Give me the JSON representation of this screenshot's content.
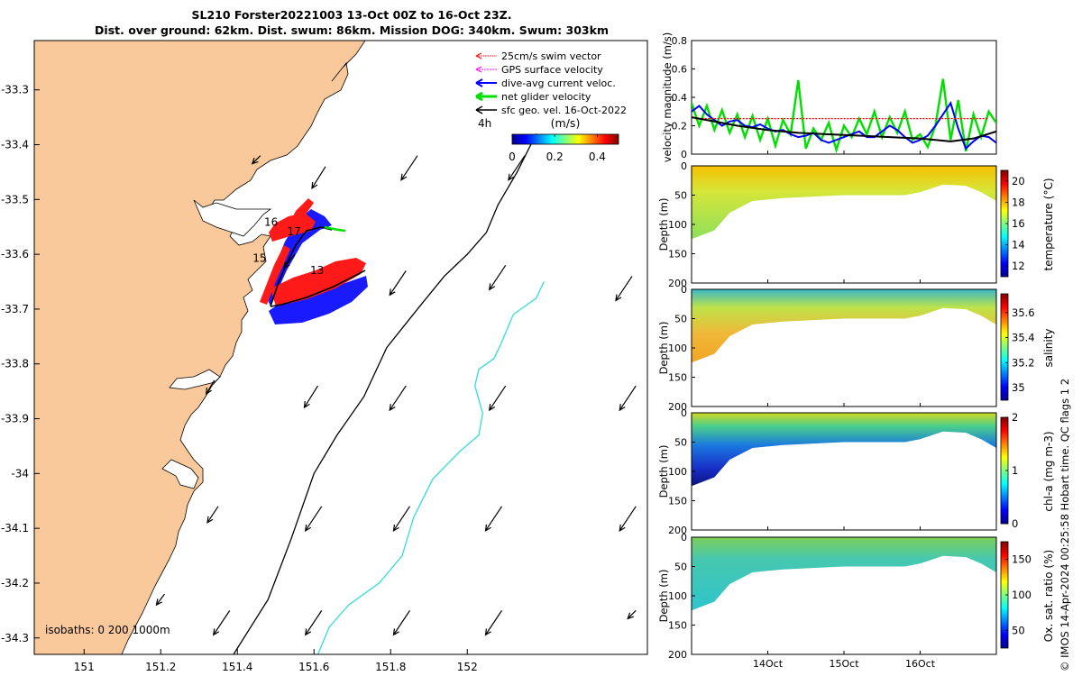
{
  "title": {
    "line1": "SL210 Forster20221003 13-Oct 00Z to 16-Oct 23Z.",
    "line2": "Dist. over ground: 62km. Dist. swum: 86km. Mission DOG: 340km. Swum: 303km"
  },
  "footer": "© IMOS 14-Apr-2024 00:25:58 Hobart time. QC flags 1  2",
  "colors": {
    "land": "#f9c99b",
    "swim_vector": "#ff0000",
    "gps_velocity": "#ff00ff",
    "dive_avg_current": "#0000ff",
    "net_glider": "#00e000",
    "sfc_geo": "#000000",
    "isobath_200": "#000000",
    "isobath_1000": "#33dddd"
  },
  "chart_data": [
    {
      "type": "map",
      "id": "track-map",
      "xlim": [
        150.87,
        152.47
      ],
      "ylim": [
        -34.33,
        -33.21
      ],
      "xticks": [
        151,
        151.2,
        151.4,
        151.6,
        151.8,
        152
      ],
      "xtick_labels": [
        "151",
        "151.2",
        "151.4",
        "151.6",
        "151.8",
        "152"
      ],
      "yticks": [
        -33.3,
        -33.4,
        -33.5,
        -33.6,
        -33.7,
        -33.8,
        -33.9,
        -34,
        -34.1,
        -34.2,
        -34.3
      ],
      "ytick_labels": [
        "-33.3",
        "-33.4",
        "-33.5",
        "-33.6",
        "-33.7",
        "-33.8",
        "-33.9",
        "-34",
        "-34.1",
        "-34.2",
        "-34.3"
      ],
      "legend": {
        "entries": [
          "25cm/s swim vector",
          "GPS surface velocity",
          "dive-avg current veloc.",
          "net glider velocity",
          "sfc geo. vel. 16-Oct-2022"
        ],
        "vector_scale_label": "4h",
        "colorbar_label": "(m/s)",
        "colorbar_ticks": [
          0,
          0.2,
          0.4
        ],
        "colorbar_tick_labels": [
          "0",
          "0.2",
          "0.4"
        ],
        "colorbar_range": [
          0,
          0.5
        ]
      },
      "isobaths_label": "isobaths: 0   200  1000m",
      "isobath_200m": [
        [
          151.39,
          -34.33
        ],
        [
          151.48,
          -34.23
        ],
        [
          151.54,
          -34.12
        ],
        [
          151.6,
          -34.0
        ],
        [
          151.66,
          -33.93
        ],
        [
          151.73,
          -33.86
        ],
        [
          151.79,
          -33.77
        ],
        [
          151.87,
          -33.7
        ],
        [
          151.94,
          -33.64
        ],
        [
          152.0,
          -33.6
        ],
        [
          152.05,
          -33.56
        ],
        [
          152.08,
          -33.51
        ],
        [
          152.13,
          -33.45
        ],
        [
          152.18,
          -33.38
        ]
      ],
      "isobath_1000m": [
        [
          151.61,
          -34.33
        ],
        [
          151.64,
          -34.28
        ],
        [
          151.69,
          -34.24
        ],
        [
          151.77,
          -34.2
        ],
        [
          151.83,
          -34.15
        ],
        [
          151.86,
          -34.08
        ],
        [
          151.91,
          -34.01
        ],
        [
          151.98,
          -33.96
        ],
        [
          152.03,
          -33.93
        ],
        [
          152.04,
          -33.89
        ],
        [
          152.02,
          -33.84
        ],
        [
          152.03,
          -33.81
        ],
        [
          152.07,
          -33.79
        ],
        [
          152.09,
          -33.76
        ],
        [
          152.12,
          -33.71
        ],
        [
          152.18,
          -33.68
        ],
        [
          152.2,
          -33.65
        ]
      ],
      "glider_track_labels": [
        {
          "label": "13",
          "lon": 151.59,
          "lat": -33.636
        },
        {
          "label": "15",
          "lon": 151.44,
          "lat": -33.614
        },
        {
          "label": "16",
          "lon": 151.47,
          "lat": -33.548
        },
        {
          "label": "17",
          "lon": 151.53,
          "lat": -33.565
        }
      ],
      "surface_geostrophic_velocity_16oct": [
        {
          "lon": 151.46,
          "lat": -33.42,
          "u": -0.03,
          "v": -0.03
        },
        {
          "lon": 151.63,
          "lat": -33.44,
          "u": -0.05,
          "v": -0.08
        },
        {
          "lon": 151.87,
          "lat": -33.42,
          "u": -0.06,
          "v": -0.09
        },
        {
          "lon": 152.15,
          "lat": -33.42,
          "u": -0.06,
          "v": -0.09
        },
        {
          "lon": 151.55,
          "lat": -33.6,
          "u": -0.04,
          "v": -0.05
        },
        {
          "lon": 151.84,
          "lat": -33.63,
          "u": -0.06,
          "v": -0.09
        },
        {
          "lon": 152.1,
          "lat": -33.62,
          "u": -0.06,
          "v": -0.09
        },
        {
          "lon": 152.43,
          "lat": -33.64,
          "u": -0.06,
          "v": -0.09
        },
        {
          "lon": 151.34,
          "lat": -33.83,
          "u": -0.03,
          "v": -0.05
        },
        {
          "lon": 151.61,
          "lat": -33.84,
          "u": -0.05,
          "v": -0.08
        },
        {
          "lon": 151.84,
          "lat": -33.84,
          "u": -0.06,
          "v": -0.09
        },
        {
          "lon": 152.1,
          "lat": -33.84,
          "u": -0.06,
          "v": -0.09
        },
        {
          "lon": 152.44,
          "lat": -33.84,
          "u": -0.06,
          "v": -0.09
        },
        {
          "lon": 151.35,
          "lat": -34.06,
          "u": -0.04,
          "v": -0.06
        },
        {
          "lon": 151.62,
          "lat": -34.06,
          "u": -0.06,
          "v": -0.09
        },
        {
          "lon": 151.85,
          "lat": -34.06,
          "u": -0.06,
          "v": -0.09
        },
        {
          "lon": 152.09,
          "lat": -34.06,
          "u": -0.06,
          "v": -0.09
        },
        {
          "lon": 152.44,
          "lat": -34.06,
          "u": -0.06,
          "v": -0.09
        },
        {
          "lon": 151.21,
          "lat": -34.22,
          "u": -0.03,
          "v": -0.04
        },
        {
          "lon": 151.38,
          "lat": -34.25,
          "u": -0.06,
          "v": -0.09
        },
        {
          "lon": 151.62,
          "lat": -34.25,
          "u": -0.06,
          "v": -0.09
        },
        {
          "lon": 151.85,
          "lat": -34.25,
          "u": -0.06,
          "v": -0.09
        },
        {
          "lon": 152.09,
          "lat": -34.25,
          "u": -0.06,
          "v": -0.09
        },
        {
          "lon": 152.44,
          "lat": -34.25,
          "u": -0.03,
          "v": -0.03
        }
      ]
    },
    {
      "type": "line",
      "id": "velocity-timeseries",
      "xlim": [
        0,
        4
      ],
      "x_unit": "days since 13-Oct 00Z",
      "ylim": [
        0,
        0.8
      ],
      "yticks": [
        0,
        0.2,
        0.4,
        0.6,
        0.8
      ],
      "ytick_labels": [
        "0",
        "0.2",
        "0.4",
        "0.6",
        "0.8"
      ],
      "ylabel": "velocity magnitude (m/s)",
      "series": [
        {
          "name": "net glider velocity",
          "color": "#00e000",
          "x": [
            0,
            0.1,
            0.2,
            0.3,
            0.4,
            0.5,
            0.6,
            0.7,
            0.8,
            0.9,
            1.0,
            1.1,
            1.2,
            1.3,
            1.4,
            1.5,
            1.6,
            1.7,
            1.8,
            1.9,
            2.0,
            2.1,
            2.2,
            2.3,
            2.4,
            2.5,
            2.6,
            2.7,
            2.8,
            2.9,
            3.0,
            3.1,
            3.2,
            3.3,
            3.4,
            3.5,
            3.6,
            3.7,
            3.8,
            3.9,
            4.0
          ],
          "values": [
            0.36,
            0.2,
            0.34,
            0.17,
            0.31,
            0.15,
            0.28,
            0.12,
            0.27,
            0.1,
            0.25,
            0.06,
            0.24,
            0.14,
            0.52,
            0.04,
            0.18,
            0.1,
            0.22,
            0.03,
            0.2,
            0.12,
            0.25,
            0.14,
            0.3,
            0.12,
            0.26,
            0.15,
            0.3,
            0.1,
            0.14,
            0.05,
            0.2,
            0.53,
            0.1,
            0.38,
            0.02,
            0.28,
            0.12,
            0.3,
            0.22
          ]
        },
        {
          "name": "dive-avg current veloc.",
          "color": "#0000ff",
          "x": [
            0,
            0.1,
            0.2,
            0.3,
            0.4,
            0.5,
            0.6,
            0.7,
            0.8,
            0.9,
            1.0,
            1.1,
            1.2,
            1.3,
            1.4,
            1.5,
            1.6,
            1.7,
            1.8,
            1.9,
            2.0,
            2.1,
            2.2,
            2.3,
            2.4,
            2.5,
            2.6,
            2.7,
            2.8,
            2.9,
            3.0,
            3.1,
            3.2,
            3.3,
            3.4,
            3.5,
            3.6,
            3.7,
            3.8,
            3.9,
            4.0
          ],
          "values": [
            0.3,
            0.34,
            0.28,
            0.24,
            0.2,
            0.23,
            0.24,
            0.2,
            0.19,
            0.21,
            0.18,
            0.16,
            0.17,
            0.14,
            0.12,
            0.13,
            0.15,
            0.1,
            0.08,
            0.1,
            0.12,
            0.14,
            0.16,
            0.12,
            0.12,
            0.16,
            0.2,
            0.17,
            0.12,
            0.08,
            0.1,
            0.13,
            0.2,
            0.28,
            0.36,
            0.18,
            0.04,
            0.09,
            0.13,
            0.12,
            0.08
          ]
        },
        {
          "name": "25cm/s swim vector",
          "color": "#ff0000",
          "x": [
            0.05,
            3.9
          ],
          "values": [
            0.25,
            0.25
          ]
        },
        {
          "name": "sfc geo. vel. 16-Oct-2022",
          "color": "#000000",
          "x": [
            0,
            0.3,
            0.6,
            1.0,
            1.4,
            1.8,
            2.2,
            2.6,
            3.0,
            3.4,
            3.7,
            4.0
          ],
          "values": [
            0.26,
            0.23,
            0.2,
            0.17,
            0.15,
            0.14,
            0.13,
            0.12,
            0.11,
            0.09,
            0.11,
            0.16
          ]
        }
      ]
    },
    {
      "type": "heatmap",
      "id": "temperature-section",
      "ylabel": "Depth (m)",
      "colorbar_label": "temperature (°C)",
      "ylim": [
        200,
        0
      ],
      "yticks": [
        0,
        50,
        100,
        150,
        200
      ],
      "ytick_labels": [
        "0",
        "50",
        "100",
        "150",
        "200"
      ],
      "clim": [
        11,
        21
      ],
      "colorbar_ticks": [
        12,
        14,
        16,
        18,
        20
      ],
      "colorbar_tick_labels": [
        "12",
        "14",
        "16",
        "18",
        "20"
      ],
      "bottom_depth_profile_m": {
        "x": [
          0,
          0.3,
          0.5,
          0.8,
          1.2,
          2.0,
          2.8,
          3.0,
          3.3,
          3.6,
          3.8,
          4.0
        ],
        "depth": [
          125,
          110,
          80,
          60,
          55,
          50,
          50,
          45,
          32,
          34,
          45,
          60
        ]
      },
      "surface_value": 19.5,
      "deep_value": 15.5
    },
    {
      "type": "heatmap",
      "id": "salinity-section",
      "ylabel": "Depth (m)",
      "colorbar_label": "salinity",
      "ylim": [
        200,
        0
      ],
      "yticks": [
        0,
        50,
        100,
        150,
        200
      ],
      "ytick_labels": [
        "0",
        "50",
        "100",
        "150",
        "200"
      ],
      "clim": [
        34.9,
        35.75
      ],
      "colorbar_ticks": [
        35,
        35.2,
        35.4,
        35.6
      ],
      "colorbar_tick_labels": [
        "35",
        "35.2",
        "35.4",
        "35.6"
      ],
      "bottom_depth_profile_m": {
        "x": [
          0,
          0.3,
          0.5,
          0.8,
          1.2,
          2.0,
          2.8,
          3.0,
          3.3,
          3.6,
          3.8,
          4.0
        ],
        "depth": [
          125,
          110,
          80,
          60,
          55,
          50,
          50,
          45,
          32,
          34,
          45,
          60
        ]
      },
      "surface_value": 35.2,
      "deep_value": 35.55
    },
    {
      "type": "heatmap",
      "id": "chla-section",
      "ylabel": "Depth (m)",
      "colorbar_label": "chl-a (mg m-3)",
      "ylim": [
        200,
        0
      ],
      "yticks": [
        0,
        50,
        100,
        150,
        200
      ],
      "ytick_labels": [
        "0",
        "50",
        "100",
        "150",
        "200"
      ],
      "clim": [
        0,
        2
      ],
      "colorbar_ticks": [
        0,
        1,
        2
      ],
      "colorbar_tick_labels": [
        "0",
        "1",
        "2"
      ],
      "bottom_depth_profile_m": {
        "x": [
          0,
          0.3,
          0.5,
          0.8,
          1.2,
          2.0,
          2.8,
          3.0,
          3.3,
          3.6,
          3.8,
          4.0
        ],
        "depth": [
          125,
          110,
          80,
          60,
          55,
          50,
          50,
          45,
          32,
          34,
          45,
          60
        ]
      },
      "surface_value": 1.2,
      "deep_value": 0.05
    },
    {
      "type": "heatmap",
      "id": "oxygen-section",
      "ylabel": "Depth (m)",
      "colorbar_label": "Ox. sat. ratio (%)",
      "ylim": [
        200,
        0
      ],
      "yticks": [
        0,
        50,
        100,
        150,
        200
      ],
      "ytick_labels": [
        "0",
        "50",
        "100",
        "150",
        "200"
      ],
      "clim": [
        25,
        175
      ],
      "colorbar_ticks": [
        50,
        100,
        150
      ],
      "colorbar_tick_labels": [
        "50",
        "100",
        "150"
      ],
      "xticks": [
        1,
        2,
        3
      ],
      "xtick_labels": [
        "14Oct",
        "15Oct",
        "16Oct"
      ],
      "bottom_depth_profile_m": {
        "x": [
          0,
          0.3,
          0.5,
          0.8,
          1.2,
          2.0,
          2.8,
          3.0,
          3.3,
          3.6,
          3.8,
          4.0
        ],
        "depth": [
          125,
          110,
          80,
          60,
          55,
          50,
          50,
          45,
          32,
          34,
          45,
          60
        ]
      },
      "surface_value": 112,
      "deep_value": 90
    }
  ]
}
